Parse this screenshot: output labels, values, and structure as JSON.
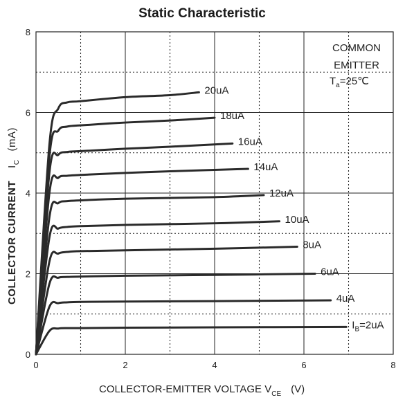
{
  "chart_data": {
    "type": "line",
    "title": "Static Characteristic",
    "xlabel": {
      "main": "COLLECTOR-EMITTER VOLTAGE   V",
      "sub": "CE",
      "unit": "(V)"
    },
    "ylabel": {
      "main": "COLLECTOR CURRENT",
      "symbol": "I",
      "sub": "C",
      "unit": "(mA)"
    },
    "xlim": [
      0,
      8
    ],
    "ylim": [
      0,
      8
    ],
    "x_ticks": [
      "0",
      "2",
      "4",
      "6",
      "8"
    ],
    "y_ticks": [
      "0",
      "2",
      "4",
      "6",
      "8"
    ],
    "grid": "solid at major ticks, dotted at minor",
    "annotation": {
      "line1": "COMMON",
      "line2": "EMITTER",
      "line3_prefix": "T",
      "line3_sub": "a",
      "line3_suffix": "=25℃"
    },
    "series": [
      {
        "name": "20uA",
        "points": [
          [
            0,
            0
          ],
          [
            0.3,
            5.2
          ],
          [
            0.5,
            6.1
          ],
          [
            0.7,
            6.25
          ],
          [
            1,
            6.28
          ],
          [
            2,
            6.38
          ],
          [
            3,
            6.43
          ],
          [
            3.65,
            6.5
          ]
        ]
      },
      {
        "name": "18uA",
        "points": [
          [
            0,
            0
          ],
          [
            0.3,
            4.9
          ],
          [
            0.5,
            5.55
          ],
          [
            0.7,
            5.65
          ],
          [
            1,
            5.68
          ],
          [
            2,
            5.75
          ],
          [
            3,
            5.8
          ],
          [
            4.0,
            5.87
          ]
        ]
      },
      {
        "name": "16uA",
        "points": [
          [
            0,
            0
          ],
          [
            0.3,
            4.5
          ],
          [
            0.5,
            4.95
          ],
          [
            0.7,
            5.02
          ],
          [
            1,
            5.04
          ],
          [
            2,
            5.1
          ],
          [
            3,
            5.15
          ],
          [
            4.4,
            5.23
          ]
        ]
      },
      {
        "name": "14uA",
        "points": [
          [
            0,
            0
          ],
          [
            0.3,
            4.0
          ],
          [
            0.5,
            4.38
          ],
          [
            0.7,
            4.43
          ],
          [
            1,
            4.45
          ],
          [
            2,
            4.5
          ],
          [
            3,
            4.54
          ],
          [
            4.75,
            4.6
          ]
        ]
      },
      {
        "name": "12uA",
        "points": [
          [
            0,
            0
          ],
          [
            0.3,
            3.4
          ],
          [
            0.5,
            3.75
          ],
          [
            0.7,
            3.8
          ],
          [
            1,
            3.82
          ],
          [
            2,
            3.86
          ],
          [
            4,
            3.9
          ],
          [
            5.1,
            3.95
          ]
        ]
      },
      {
        "name": "10uA",
        "points": [
          [
            0,
            0
          ],
          [
            0.3,
            2.9
          ],
          [
            0.5,
            3.12
          ],
          [
            0.7,
            3.16
          ],
          [
            1,
            3.18
          ],
          [
            2,
            3.21
          ],
          [
            4,
            3.25
          ],
          [
            5.45,
            3.3
          ]
        ]
      },
      {
        "name": "8uA",
        "points": [
          [
            0,
            0
          ],
          [
            0.3,
            2.3
          ],
          [
            0.5,
            2.5
          ],
          [
            0.7,
            2.54
          ],
          [
            1,
            2.56
          ],
          [
            2,
            2.58
          ],
          [
            4,
            2.62
          ],
          [
            5.85,
            2.67
          ]
        ]
      },
      {
        "name": "6uA",
        "points": [
          [
            0,
            0
          ],
          [
            0.3,
            1.75
          ],
          [
            0.5,
            1.9
          ],
          [
            0.7,
            1.92
          ],
          [
            1,
            1.93
          ],
          [
            2,
            1.95
          ],
          [
            4,
            1.97
          ],
          [
            6.25,
            2.0
          ]
        ]
      },
      {
        "name": "4uA",
        "points": [
          [
            0,
            0
          ],
          [
            0.3,
            1.18
          ],
          [
            0.5,
            1.27
          ],
          [
            0.7,
            1.29
          ],
          [
            1,
            1.3
          ],
          [
            2,
            1.31
          ],
          [
            4,
            1.32
          ],
          [
            6.6,
            1.34
          ]
        ]
      },
      {
        "name": "I",
        "label_sub": "B",
        "label_suffix": "=2uA",
        "points": [
          [
            0,
            0
          ],
          [
            0.3,
            0.58
          ],
          [
            0.5,
            0.64
          ],
          [
            0.7,
            0.65
          ],
          [
            1,
            0.65
          ],
          [
            2,
            0.66
          ],
          [
            4,
            0.67
          ],
          [
            6.95,
            0.68
          ]
        ]
      }
    ]
  }
}
